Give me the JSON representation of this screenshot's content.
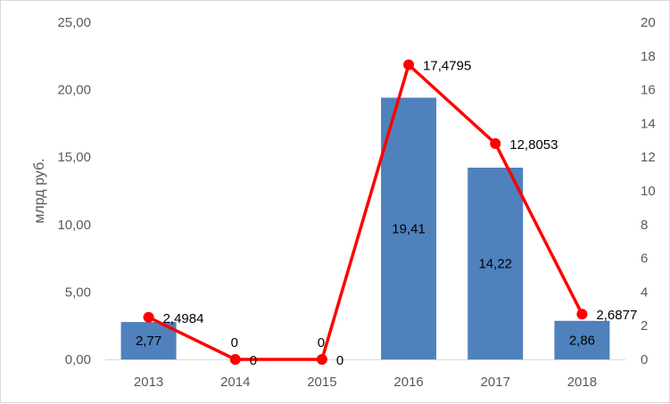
{
  "chart_data": {
    "type": "bar",
    "categories": [
      "2013",
      "2014",
      "2015",
      "2016",
      "2017",
      "2018"
    ],
    "series": [
      {
        "type": "bar",
        "axis": "left",
        "values": [
          2.77,
          0,
          0,
          19.41,
          14.22,
          2.86
        ],
        "data_labels": [
          "2,77",
          "",
          "",
          "19,41",
          "14,22",
          "2,86"
        ],
        "color": "#4F81BD"
      },
      {
        "type": "line",
        "axis": "right",
        "values": [
          2.4984,
          0,
          0,
          17.4795,
          12.8053,
          2.6877
        ],
        "data_labels": [
          "2,4984",
          "0",
          "0",
          "17,4795",
          "12,8053",
          "2,6877"
        ],
        "color": "#FF0000"
      }
    ],
    "ylabel": "млрд руб.",
    "y_left": {
      "lim": [
        0,
        25
      ],
      "ticks": [
        "0,00",
        "5,00",
        "10,00",
        "15,00",
        "20,00",
        "25,00"
      ]
    },
    "y_right": {
      "lim": [
        0,
        20
      ],
      "ticks": [
        "0",
        "2",
        "4",
        "6",
        "8",
        "10",
        "12",
        "14",
        "16",
        "18",
        "20"
      ]
    },
    "grid": false,
    "legend": "none",
    "extra_labels": [
      {
        "category": "2014",
        "text": "0"
      },
      {
        "category": "2015",
        "text": "0"
      }
    ]
  }
}
